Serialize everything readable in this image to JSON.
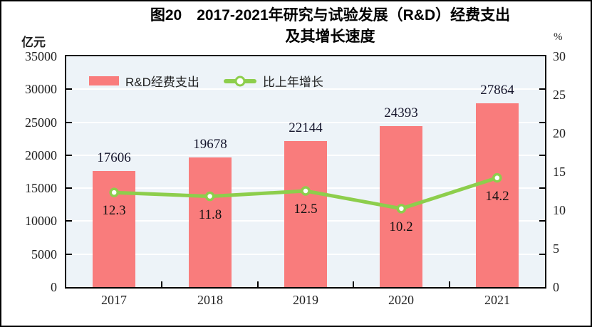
{
  "figure": {
    "title_line1": "图20　2017-2021年研究与试验发展（R&D）经费支出",
    "title_line2": "及其增长速度",
    "left_axis_unit": "亿元",
    "right_axis_unit": "%"
  },
  "legend": [
    {
      "label": "R&D经费支出",
      "type": "bar",
      "color": "#F97C7C"
    },
    {
      "label": "比上年增长",
      "type": "line",
      "color": "#8DCE4C"
    }
  ],
  "chart_data": {
    "type": "bar+line combo",
    "title": "图20　2017-2021年研究与试验发展（R&D）经费支出及其增长速度",
    "categories": [
      "2017",
      "2018",
      "2019",
      "2020",
      "2021"
    ],
    "series": [
      {
        "name": "R&D经费支出",
        "type": "bar",
        "axis": "left",
        "values": [
          17606,
          19678,
          22144,
          24393,
          27864
        ],
        "labels": [
          "17606",
          "19678",
          "22144",
          "24393",
          "27864"
        ],
        "color": "#F97C7C"
      },
      {
        "name": "比上年增长",
        "type": "line",
        "axis": "right",
        "values": [
          12.3,
          11.8,
          12.5,
          10.2,
          14.2
        ],
        "labels": [
          "12.3",
          "11.8",
          "12.5",
          "10.2",
          "14.2"
        ],
        "color": "#8DCE4C",
        "marker": "circle-white-fill-green-ring"
      }
    ],
    "left_axis": {
      "unit": "亿元",
      "min": 0,
      "max": 35000,
      "step": 5000,
      "ticks": [
        "35000",
        "30000",
        "25000",
        "20000",
        "15000",
        "10000",
        "5000",
        "0"
      ]
    },
    "right_axis": {
      "unit": "%",
      "min": 0,
      "max": 30,
      "step": 5,
      "ticks": [
        "30",
        "25",
        "20",
        "15",
        "10",
        "5",
        "0"
      ]
    },
    "layout": {
      "grid": true,
      "grid_color": "#FFFFFF",
      "plot_bg": "#EDF3F8",
      "frame_color": "#000000",
      "legend_position": "top-left-inside"
    }
  }
}
